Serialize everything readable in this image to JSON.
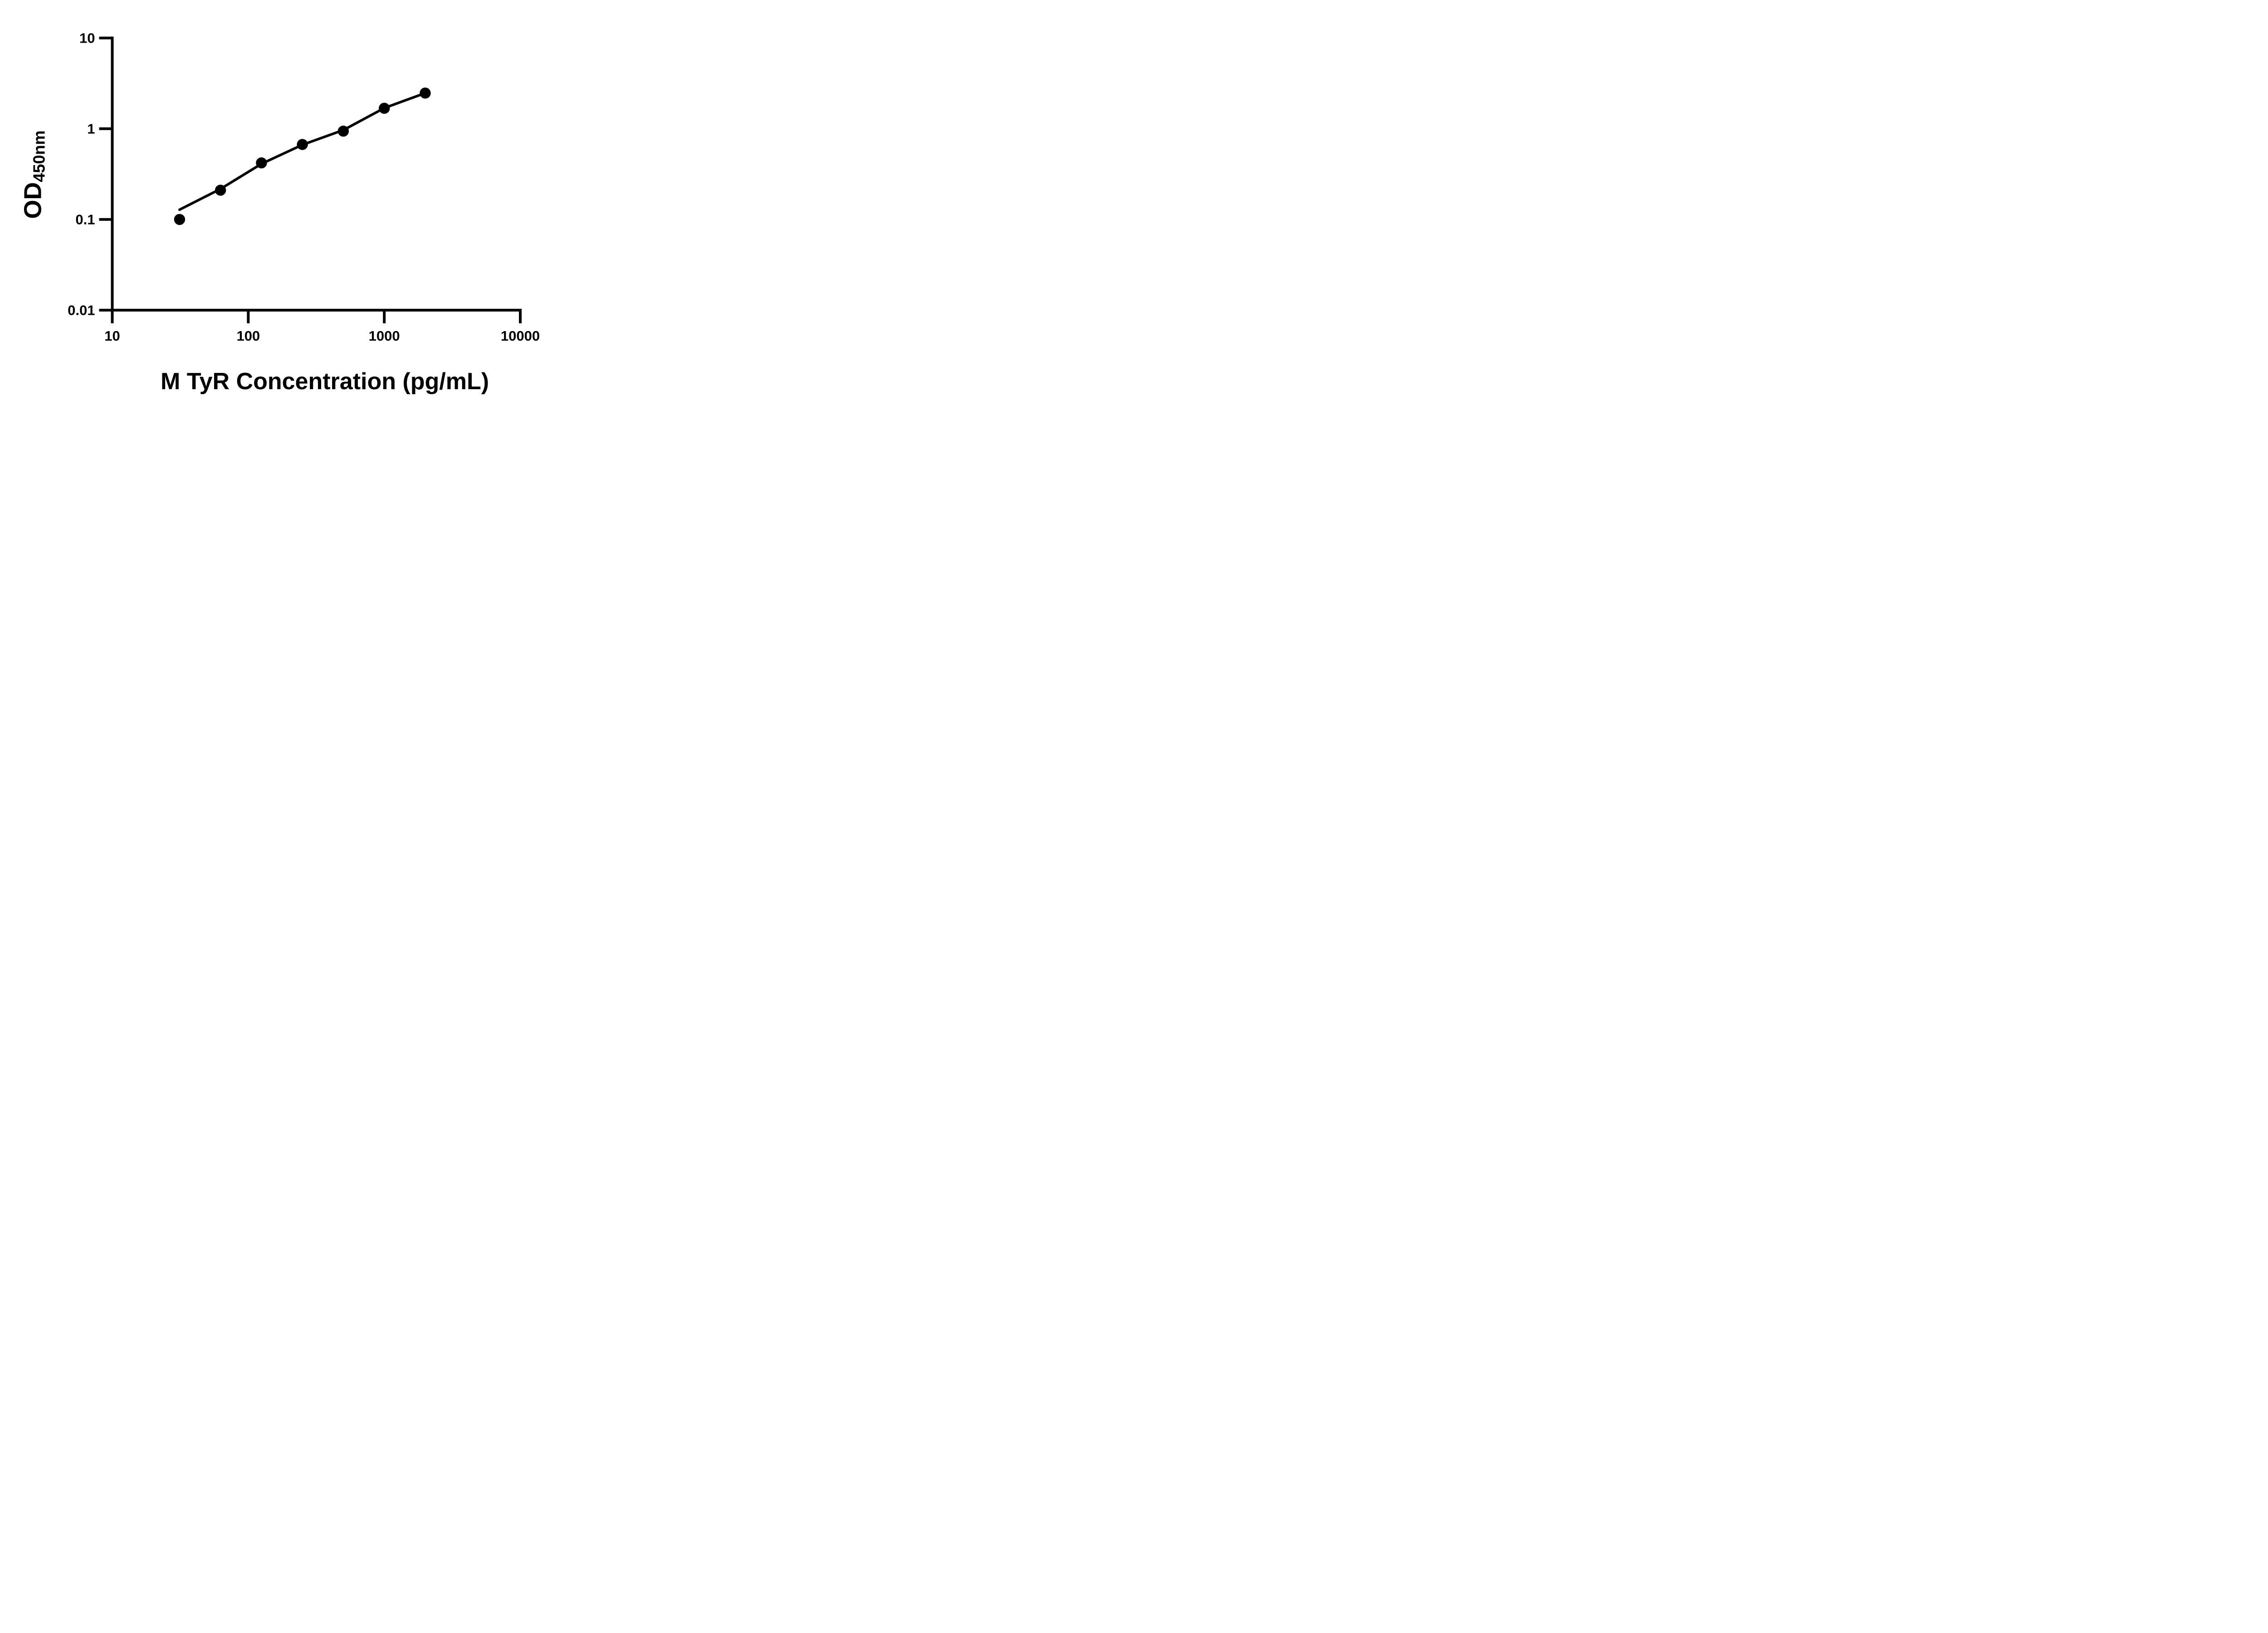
{
  "figure": {
    "background": "#ffffff",
    "ink_color": "#000000"
  },
  "chart_data": {
    "type": "scatter",
    "title": "",
    "xlabel": "M TyR Concentration (pg/mL)",
    "ylabel_main": "OD",
    "ylabel_sub": "450nm",
    "x_scale": "log10",
    "y_scale": "log10",
    "xlim": [
      10,
      10000
    ],
    "ylim": [
      0.01,
      10
    ],
    "grid": false,
    "legend": false,
    "x_ticks": [
      {
        "value": 10,
        "label": "10"
      },
      {
        "value": 100,
        "label": "100"
      },
      {
        "value": 1000,
        "label": "1000"
      },
      {
        "value": 10000,
        "label": "10000"
      }
    ],
    "y_ticks": [
      {
        "value": 0.01,
        "label": "0.01"
      },
      {
        "value": 0.1,
        "label": "0.1"
      },
      {
        "value": 1,
        "label": "1"
      },
      {
        "value": 10,
        "label": "10"
      }
    ],
    "series": [
      {
        "name": "standard-points",
        "kind": "scatter",
        "marker": "filled-circle",
        "color": "#000000",
        "x": [
          31.25,
          62.5,
          125,
          250,
          500,
          1000,
          2000
        ],
        "y": [
          0.1,
          0.21,
          0.42,
          0.67,
          0.94,
          1.68,
          2.47
        ]
      },
      {
        "name": "fit-line",
        "kind": "line",
        "color": "#000000",
        "x": [
          31.25,
          62.5,
          125,
          250,
          500,
          1000,
          2000
        ],
        "y": [
          0.128,
          0.217,
          0.41,
          0.665,
          0.965,
          1.69,
          2.47
        ]
      }
    ]
  }
}
